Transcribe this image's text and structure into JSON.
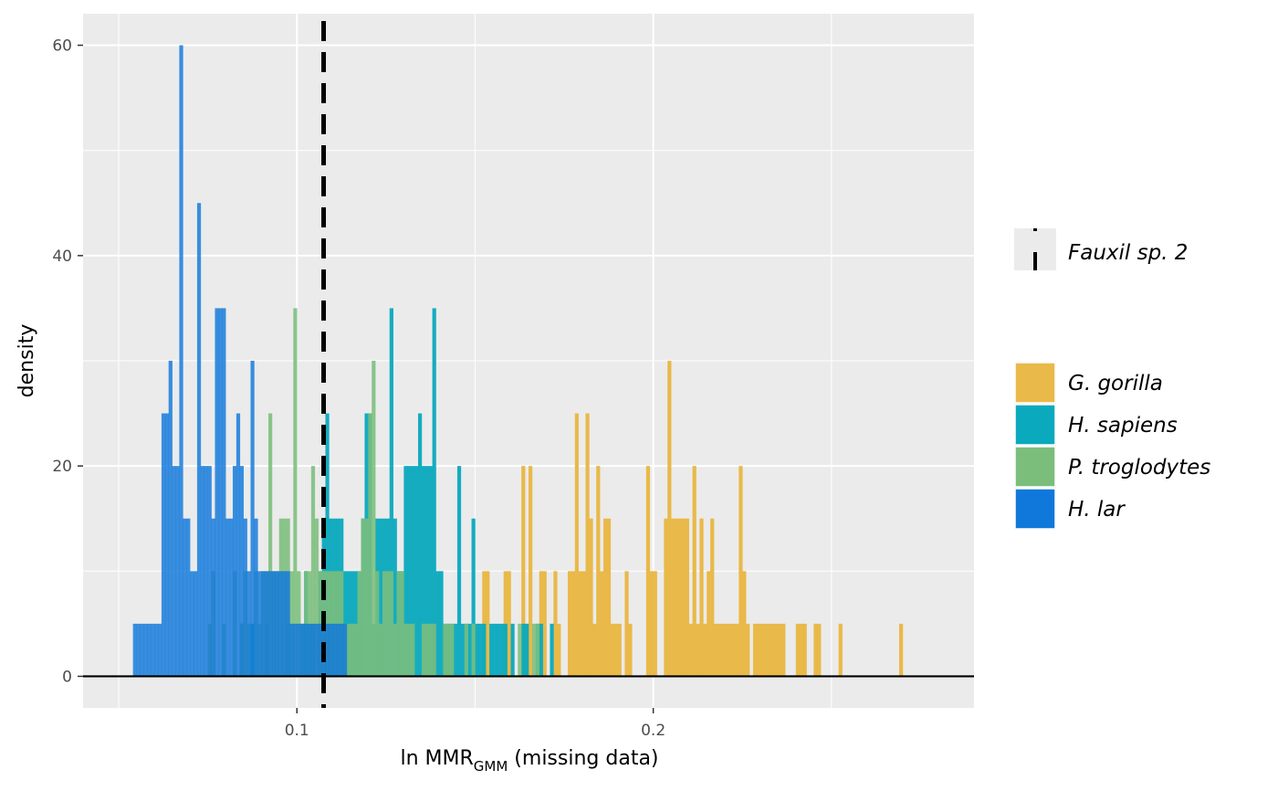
{
  "chart_data": {
    "type": "bar",
    "subtype": "overlaid-histogram",
    "title": "",
    "xlabel": {
      "main": "ln MMR",
      "subscript": "GMM",
      "suffix": " (missing data)"
    },
    "ylabel": "density",
    "xlim": [
      0.04,
      0.29
    ],
    "ylim": [
      -3,
      63
    ],
    "x_ticks": [
      {
        "value": 0.1,
        "label": "0.1"
      },
      {
        "value": 0.2,
        "label": "0.2"
      }
    ],
    "y_ticks": [
      {
        "value": 0,
        "label": "0"
      },
      {
        "value": 20,
        "label": "20"
      },
      {
        "value": 40,
        "label": "40"
      },
      {
        "value": 60,
        "label": "60"
      }
    ],
    "grid": true,
    "bin_width": 0.001,
    "reference_line": {
      "name": "Fauxil sp. 2",
      "x": 0.1075,
      "style": "dashed",
      "color": "#000000"
    },
    "legend": {
      "position": "right",
      "line_entry": {
        "label": "Fauxil sp. 2"
      },
      "fill_entries": [
        {
          "label": "G. gorilla",
          "color": "#E9B949"
        },
        {
          "label": "H. sapiens",
          "color": "#0AA9BE"
        },
        {
          "label": "P. troglodytes",
          "color": "#7BBE7C"
        },
        {
          "label": "H. lar",
          "color": "#1078DB"
        }
      ]
    },
    "series": [
      {
        "name": "G. gorilla",
        "color": "#E9B949",
        "opacity": 1,
        "x": [
          0.152,
          0.153,
          0.158,
          0.159,
          0.163,
          0.164,
          0.165,
          0.168,
          0.169,
          0.172,
          0.173,
          0.176,
          0.177,
          0.178,
          0.179,
          0.18,
          0.181,
          0.182,
          0.183,
          0.184,
          0.185,
          0.186,
          0.187,
          0.188,
          0.189,
          0.19,
          0.192,
          0.193,
          0.198,
          0.199,
          0.2,
          0.203,
          0.204,
          0.205,
          0.206,
          0.207,
          0.208,
          0.209,
          0.21,
          0.211,
          0.212,
          0.213,
          0.214,
          0.215,
          0.216,
          0.217,
          0.218,
          0.219,
          0.22,
          0.221,
          0.222,
          0.223,
          0.224,
          0.225,
          0.226,
          0.228,
          0.229,
          0.23,
          0.231,
          0.232,
          0.233,
          0.234,
          0.235,
          0.236,
          0.24,
          0.241,
          0.242,
          0.245,
          0.246,
          0.252,
          0.269
        ],
        "values": [
          10,
          10,
          10,
          10,
          20,
          5,
          20,
          10,
          10,
          10,
          5,
          10,
          10,
          25,
          10,
          10,
          25,
          15,
          5,
          20,
          10,
          15,
          15,
          5,
          5,
          5,
          10,
          5,
          20,
          10,
          10,
          15,
          30,
          15,
          15,
          15,
          15,
          15,
          5,
          20,
          5,
          15,
          5,
          10,
          15,
          5,
          5,
          5,
          5,
          5,
          5,
          5,
          20,
          10,
          5,
          5,
          5,
          5,
          5,
          5,
          5,
          5,
          5,
          5,
          5,
          5,
          5,
          5,
          5,
          5,
          5
        ]
      },
      {
        "name": "H. sapiens",
        "color": "#0AA9BE",
        "opacity": 0.95,
        "x": [
          0.084,
          0.087,
          0.091,
          0.097,
          0.101,
          0.102,
          0.103,
          0.104,
          0.106,
          0.107,
          0.108,
          0.109,
          0.11,
          0.111,
          0.112,
          0.113,
          0.114,
          0.115,
          0.116,
          0.117,
          0.118,
          0.119,
          0.12,
          0.121,
          0.122,
          0.123,
          0.124,
          0.125,
          0.126,
          0.127,
          0.128,
          0.129,
          0.13,
          0.131,
          0.132,
          0.133,
          0.134,
          0.135,
          0.136,
          0.137,
          0.138,
          0.139,
          0.14,
          0.141,
          0.142,
          0.143,
          0.144,
          0.145,
          0.146,
          0.147,
          0.148,
          0.149,
          0.15,
          0.151,
          0.152,
          0.154,
          0.155,
          0.156,
          0.157,
          0.158,
          0.16,
          0.163,
          0.164,
          0.167,
          0.168,
          0.171
        ],
        "values": [
          5,
          5,
          5,
          5,
          5,
          10,
          5,
          5,
          10,
          15,
          25,
          15,
          15,
          15,
          15,
          10,
          10,
          10,
          10,
          10,
          15,
          25,
          25,
          5,
          15,
          15,
          15,
          15,
          35,
          15,
          10,
          10,
          20,
          20,
          20,
          20,
          25,
          20,
          20,
          20,
          35,
          10,
          10,
          5,
          5,
          5,
          5,
          20,
          5,
          5,
          5,
          15,
          5,
          5,
          5,
          5,
          5,
          5,
          5,
          5,
          5,
          5,
          5,
          5,
          5,
          5
        ]
      },
      {
        "name": "P. troglodytes",
        "color": "#7BBE7C",
        "opacity": 0.88,
        "x": [
          0.075,
          0.076,
          0.079,
          0.082,
          0.084,
          0.085,
          0.086,
          0.088,
          0.089,
          0.09,
          0.091,
          0.092,
          0.093,
          0.094,
          0.095,
          0.096,
          0.097,
          0.098,
          0.099,
          0.1,
          0.101,
          0.102,
          0.103,
          0.104,
          0.105,
          0.106,
          0.107,
          0.108,
          0.109,
          0.11,
          0.111,
          0.112,
          0.113,
          0.114,
          0.115,
          0.116,
          0.117,
          0.118,
          0.119,
          0.12,
          0.121,
          0.122,
          0.123,
          0.124,
          0.125,
          0.126,
          0.127,
          0.128,
          0.129,
          0.13,
          0.131,
          0.132,
          0.135,
          0.136,
          0.137,
          0.138,
          0.141,
          0.142,
          0.143,
          0.147,
          0.149,
          0.162,
          0.166,
          0.167
        ],
        "values": [
          5,
          10,
          5,
          10,
          5,
          10,
          5,
          10,
          5,
          10,
          10,
          25,
          10,
          10,
          15,
          15,
          15,
          10,
          35,
          10,
          5,
          10,
          10,
          20,
          15,
          10,
          10,
          10,
          10,
          10,
          10,
          10,
          5,
          5,
          5,
          5,
          10,
          15,
          15,
          25,
          30,
          10,
          5,
          10,
          10,
          10,
          5,
          10,
          10,
          5,
          5,
          5,
          5,
          5,
          5,
          5,
          5,
          5,
          5,
          5,
          5,
          5,
          5,
          5
        ]
      },
      {
        "name": "H. lar",
        "color": "#1078DB",
        "opacity": 0.82,
        "x": [
          0.054,
          0.055,
          0.056,
          0.057,
          0.058,
          0.059,
          0.06,
          0.061,
          0.062,
          0.063,
          0.064,
          0.065,
          0.066,
          0.067,
          0.068,
          0.069,
          0.07,
          0.071,
          0.072,
          0.073,
          0.074,
          0.075,
          0.076,
          0.077,
          0.078,
          0.079,
          0.08,
          0.081,
          0.082,
          0.083,
          0.084,
          0.085,
          0.086,
          0.087,
          0.088,
          0.089,
          0.09,
          0.091,
          0.092,
          0.093,
          0.094,
          0.095,
          0.096,
          0.097,
          0.098,
          0.099,
          0.1,
          0.101,
          0.102,
          0.103,
          0.104,
          0.105,
          0.106,
          0.107,
          0.108,
          0.109,
          0.11,
          0.111,
          0.112,
          0.113
        ],
        "values": [
          5,
          5,
          5,
          5,
          5,
          5,
          5,
          5,
          25,
          25,
          30,
          20,
          20,
          60,
          15,
          15,
          10,
          10,
          45,
          20,
          20,
          20,
          15,
          35,
          35,
          35,
          15,
          15,
          20,
          25,
          20,
          15,
          10,
          30,
          15,
          10,
          10,
          10,
          10,
          10,
          10,
          10,
          10,
          10,
          5,
          5,
          5,
          5,
          5,
          5,
          5,
          5,
          5,
          5,
          5,
          5,
          5,
          5,
          5,
          5
        ]
      }
    ]
  }
}
